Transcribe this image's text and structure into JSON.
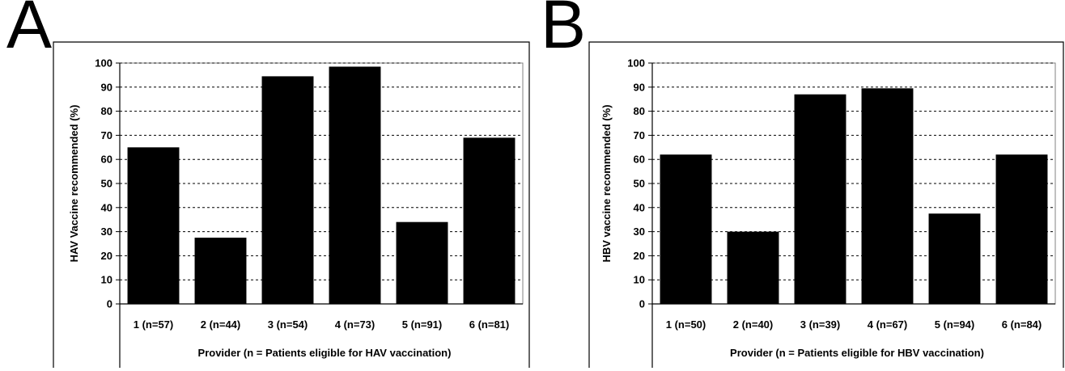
{
  "chart_data": [
    {
      "type": "bar",
      "panel_label": "A",
      "categories": [
        "1 (n=57)",
        "2 (n=44)",
        "3 (n=54)",
        "4 (n=73)",
        "5 (n=91)",
        "6 (n=81)"
      ],
      "values": [
        65,
        27.5,
        94.5,
        98.5,
        34,
        69
      ],
      "xlabel": "Provider (n = Patients eligible for HAV vaccination)",
      "ylabel": "HAV Vaccine recommended (%)",
      "ylim": [
        0,
        100
      ],
      "yticks": [
        0,
        10,
        20,
        30,
        40,
        50,
        60,
        70,
        80,
        90,
        100
      ],
      "grid": true,
      "bar_color": "#000000"
    },
    {
      "type": "bar",
      "panel_label": "B",
      "categories": [
        "1 (n=50)",
        "2 (n=40)",
        "3 (n=39)",
        "4 (n=67)",
        "5 (n=94)",
        "6 (n=84)"
      ],
      "values": [
        62,
        30,
        87,
        89.5,
        37.5,
        62
      ],
      "xlabel": "Provider (n = Patients eligible for HBV vaccination)",
      "ylabel": "HBV vaccine recommended (%)",
      "ylim": [
        0,
        100
      ],
      "yticks": [
        0,
        10,
        20,
        30,
        40,
        50,
        60,
        70,
        80,
        90,
        100
      ],
      "grid": true,
      "bar_color": "#000000"
    }
  ]
}
